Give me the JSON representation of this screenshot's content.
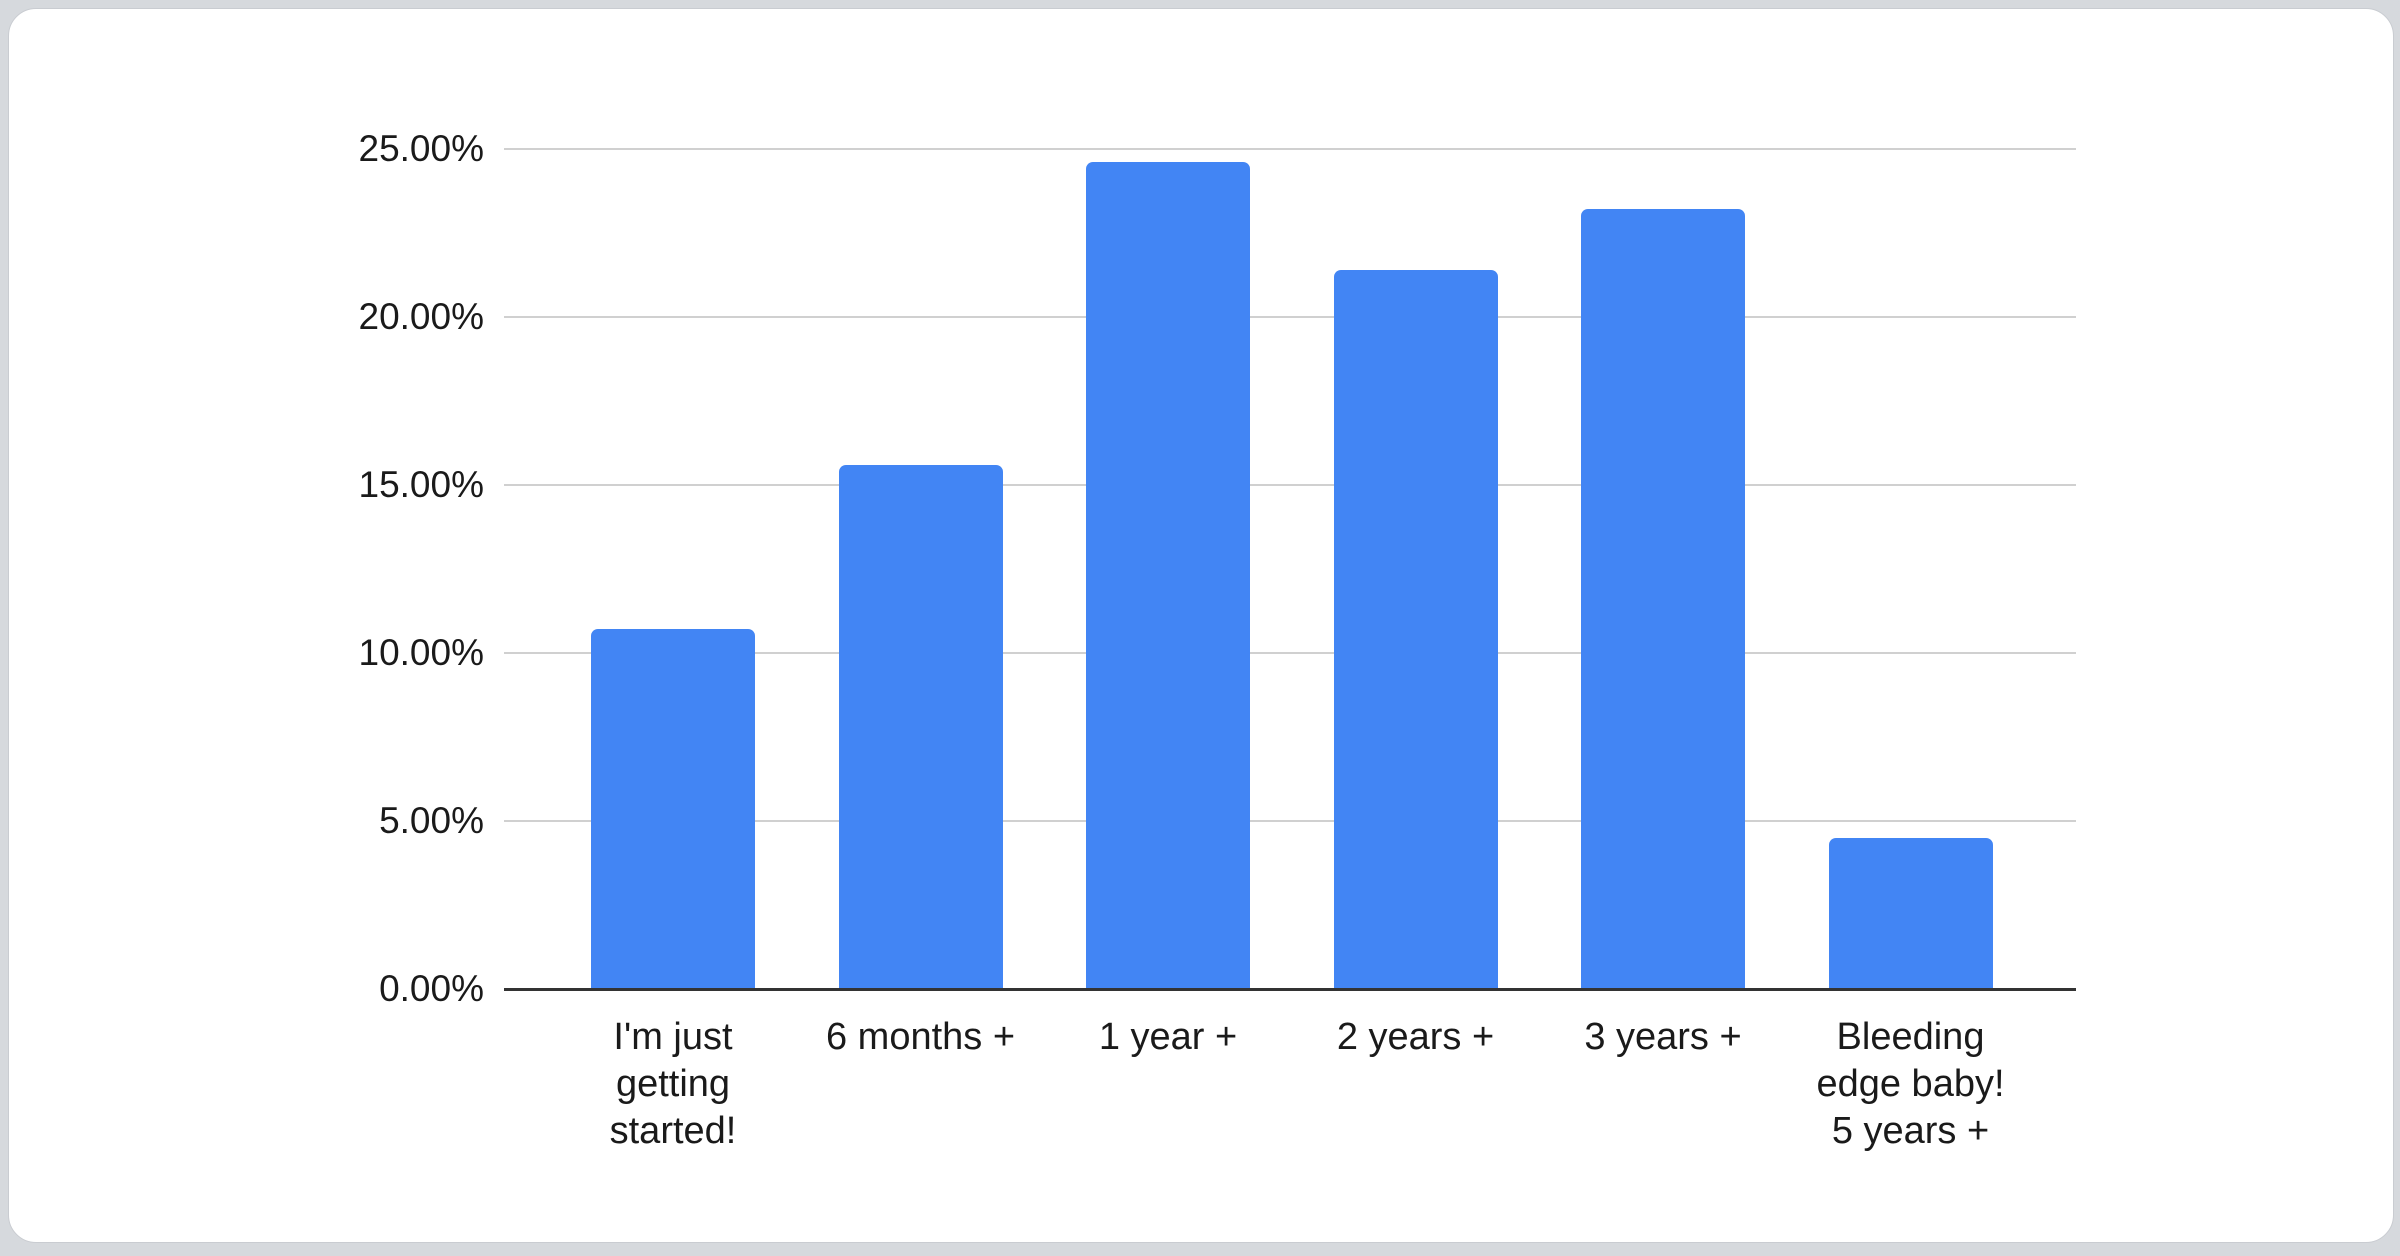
{
  "page": {
    "background_color": "#d6d9dd",
    "card_color": "#ffffff",
    "card_border_color": "#c9ccd1"
  },
  "chart_data": {
    "type": "bar",
    "title": "",
    "legend": "none",
    "grid": true,
    "unit": "%",
    "categories": [
      "I'm just getting started!",
      "6 months +",
      "1 year +",
      "2 years +",
      "3 years +",
      "Bleeding edge baby! 5 years +"
    ],
    "category_lines": [
      [
        "I'm just",
        "getting",
        "started!"
      ],
      [
        "6 months +"
      ],
      [
        "1 year +"
      ],
      [
        "2 years +"
      ],
      [
        "3 years +"
      ],
      [
        "Bleeding",
        "edge baby!",
        "5 years +"
      ]
    ],
    "values": [
      10.7,
      15.6,
      24.6,
      21.4,
      23.2,
      4.5
    ],
    "ylim": [
      0,
      25
    ],
    "y_ticks": [
      {
        "value": 25,
        "label": "25.00%"
      },
      {
        "value": 20,
        "label": "20.00%"
      },
      {
        "value": 15,
        "label": "15.00%"
      },
      {
        "value": 10,
        "label": "10.00%"
      },
      {
        "value": 5,
        "label": "5.00%"
      },
      {
        "value": 0,
        "label": "0.00%"
      }
    ],
    "xlabel": "",
    "ylabel": "",
    "bar_color": "#4285f4",
    "gridline_color": "#d0d0d0",
    "baseline_color": "#333333",
    "text_color": "#1a1a1a"
  }
}
